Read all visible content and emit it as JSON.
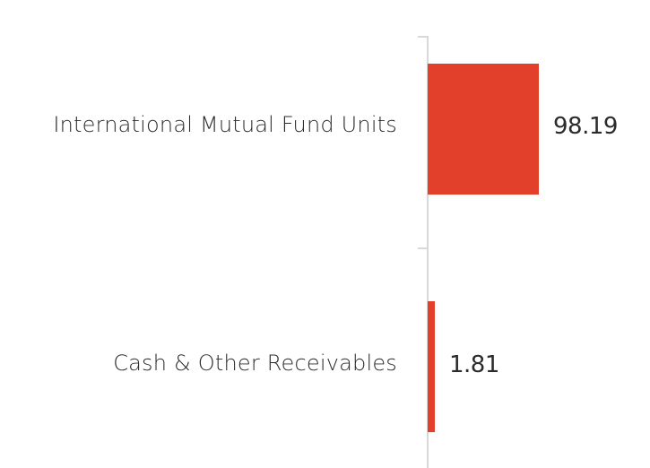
{
  "chart_data": {
    "type": "bar",
    "orientation": "horizontal",
    "title": "",
    "xlabel": "",
    "ylabel": "",
    "categories": [
      "International Mutual Fund Units",
      "Cash & Other Receivables"
    ],
    "values": [
      98.19,
      1.81
    ],
    "value_labels": [
      "98.19",
      "1.81"
    ],
    "grid": false,
    "legend": null,
    "bar_color": "#e2402a",
    "axis_color": "#d9d9d9"
  }
}
